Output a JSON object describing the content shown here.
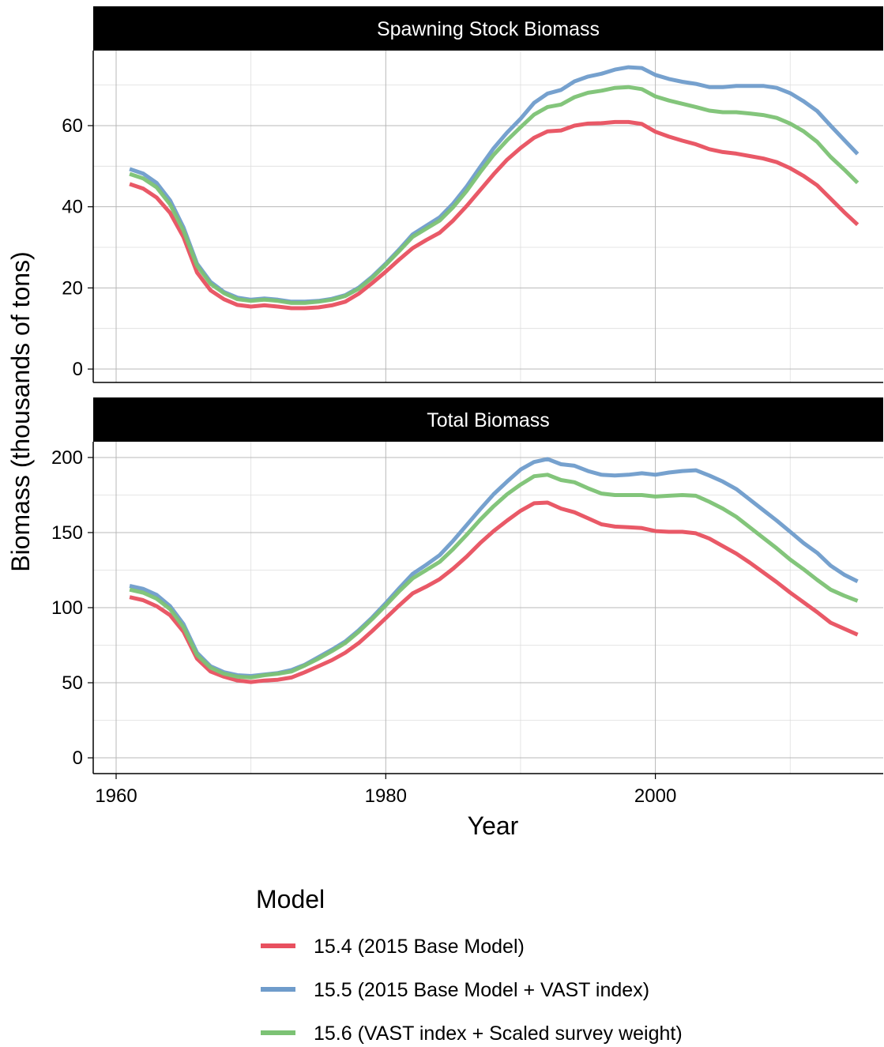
{
  "chart_data": {
    "type": "line",
    "xlabel": "Year",
    "ylabel": "Biomass (thousands of tons)",
    "xlim": [
      1958.3,
      2016.9
    ],
    "x_ticks": [
      1960,
      1980,
      2000
    ],
    "grid": true,
    "legend": {
      "title": "Model",
      "position": "bottom",
      "entries": [
        {
          "label": "15.4 (2015 Base Model)",
          "color": "#E8505F"
        },
        {
          "label": "15.5 (2015 Base Model + VAST index)",
          "color": "#6F9CCB"
        },
        {
          "label": "15.6 (VAST index + Scaled survey weight)",
          "color": "#7CC274"
        }
      ]
    },
    "panels": [
      {
        "title": "Spawning Stock Biomass",
        "ylim": [
          -3.3,
          78.5
        ],
        "y_ticks": [
          0,
          20,
          40,
          60
        ],
        "x": [
          1961,
          1962,
          1963,
          1964,
          1965,
          1966,
          1967,
          1968,
          1969,
          1970,
          1971,
          1972,
          1973,
          1974,
          1975,
          1976,
          1977,
          1978,
          1979,
          1980,
          1981,
          1982,
          1983,
          1984,
          1985,
          1986,
          1987,
          1988,
          1989,
          1990,
          1991,
          1992,
          1993,
          1994,
          1995,
          1996,
          1997,
          1998,
          1999,
          2000,
          2001,
          2002,
          2003,
          2004,
          2005,
          2006,
          2007,
          2008,
          2009,
          2010,
          2011,
          2012,
          2013,
          2014,
          2015
        ],
        "series": [
          {
            "name": "15.4 (2015 Base Model)",
            "values": [
              45.6,
              44.5,
              42.3,
              38.5,
              32.5,
              23.8,
              19.4,
              17.2,
              15.8,
              15.4,
              15.7,
              15.4,
              15.0,
              15.0,
              15.2,
              15.7,
              16.6,
              18.6,
              21.2,
              24.0,
              27.0,
              29.8,
              31.8,
              33.6,
              36.6,
              40.2,
              44.1,
              48.0,
              51.6,
              54.5,
              57.0,
              58.6,
              58.8,
              60.0,
              60.5,
              60.6,
              60.9,
              60.9,
              60.4,
              58.5,
              57.3,
              56.3,
              55.4,
              54.2,
              53.5,
              53.1,
              52.5,
              51.9,
              51.0,
              49.5,
              47.6,
              45.3,
              42.0,
              38.7,
              35.6
            ]
          },
          {
            "name": "15.5 (2015 Base Model + VAST index)",
            "values": [
              49.3,
              48.2,
              45.9,
              41.6,
              34.9,
              26.0,
              21.5,
              19.0,
              17.6,
              17.1,
              17.4,
              17.1,
              16.6,
              16.6,
              16.8,
              17.3,
              18.2,
              20.1,
              22.8,
              26.0,
              29.5,
              33.2,
              35.3,
              37.4,
              40.8,
              45.0,
              49.8,
              54.4,
              58.3,
              61.7,
              65.6,
              67.9,
              68.8,
              70.9,
              72.1,
              72.8,
              73.8,
              74.4,
              74.2,
              72.5,
              71.5,
              70.8,
              70.3,
              69.5,
              69.5,
              69.8,
              69.8,
              69.8,
              69.3,
              68.0,
              66.0,
              63.6,
              60.0,
              56.5,
              53.0
            ]
          },
          {
            "name": "15.6 (VAST index + Scaled survey weight)",
            "values": [
              48.1,
              47.0,
              44.8,
              40.6,
              34.1,
              25.5,
              21.0,
              18.7,
              17.2,
              16.8,
              17.1,
              16.8,
              16.3,
              16.3,
              16.6,
              17.1,
              18.0,
              19.8,
              22.5,
              25.7,
              29.1,
              32.6,
              34.6,
              36.6,
              39.9,
              43.9,
              48.5,
              52.8,
              56.4,
              59.6,
              62.7,
              64.6,
              65.2,
              67.0,
              68.1,
              68.6,
              69.3,
              69.5,
              69.0,
              67.2,
              66.2,
              65.4,
              64.6,
              63.7,
              63.3,
              63.3,
              63.0,
              62.6,
              61.9,
              60.5,
              58.6,
              56.0,
              52.3,
              49.2,
              45.9
            ]
          }
        ]
      },
      {
        "title": "Total Biomass",
        "ylim": [
          -10.5,
          210.5
        ],
        "y_ticks": [
          0,
          50,
          100,
          150,
          200
        ],
        "x": [
          1961,
          1962,
          1963,
          1964,
          1965,
          1966,
          1967,
          1968,
          1969,
          1970,
          1971,
          1972,
          1973,
          1974,
          1975,
          1976,
          1977,
          1978,
          1979,
          1980,
          1981,
          1982,
          1983,
          1984,
          1985,
          1986,
          1987,
          1988,
          1989,
          1990,
          1991,
          1992,
          1993,
          1994,
          1995,
          1996,
          1997,
          1998,
          1999,
          2000,
          2001,
          2002,
          2003,
          2004,
          2005,
          2006,
          2007,
          2008,
          2009,
          2010,
          2011,
          2012,
          2013,
          2014,
          2015
        ],
        "series": [
          {
            "name": "15.4 (2015 Base Model)",
            "values": [
              107,
              105,
              101,
              95,
              84,
              66,
              57.5,
              54,
              51.5,
              50.5,
              51.5,
              52,
              53.5,
              57,
              61,
              65,
              70,
              76.5,
              84.5,
              93,
              101.5,
              109.5,
              114,
              119,
              126,
              134,
              143,
              151,
              158,
              164.5,
              169.5,
              170,
              166,
              163.5,
              159.5,
              155.5,
              154,
              153.5,
              153,
              151,
              150.5,
              150.5,
              149.5,
              146,
              141,
              136,
              130,
              123.5,
              117,
              110,
              103.5,
              97,
              90,
              86,
              82
            ]
          },
          {
            "name": "15.5 (2015 Base Model + VAST index)",
            "values": [
              114.5,
              112.5,
              108.5,
              101,
              89,
              70,
              61,
              57,
              55,
              54.5,
              55.5,
              56.5,
              58.5,
              62,
              67,
              72,
              77.5,
              85,
              93.5,
              103,
              113,
              122.5,
              128.5,
              135,
              144.5,
              155,
              165.5,
              175.5,
              184,
              192,
              197,
              199,
              195.5,
              194.5,
              191,
              188.5,
              188,
              188.5,
              189.5,
              188.5,
              190,
              191,
              191.5,
              188,
              184,
              179,
              172,
              165,
              158,
              150.5,
              143,
              136.5,
              128,
              122,
              117.5
            ]
          },
          {
            "name": "15.6 (VAST index + Scaled survey weight)",
            "values": [
              112,
              110,
              106,
              99,
              87,
              68.5,
              60,
              56,
              54,
              53.5,
              55,
              56,
              57.5,
              61.5,
              66,
              71,
              76.5,
              84,
              92.5,
              101.5,
              111,
              119.5,
              125,
              130.5,
              139,
              148.5,
              158.5,
              167.5,
              175.5,
              182,
              187.5,
              188.5,
              185,
              183.5,
              179.5,
              176,
              175,
              175,
              175,
              174,
              174.5,
              175,
              174.5,
              170.5,
              166,
              160.5,
              153.5,
              146.5,
              139.5,
              132,
              125.5,
              118.5,
              112,
              108,
              104.5
            ]
          }
        ]
      }
    ]
  }
}
